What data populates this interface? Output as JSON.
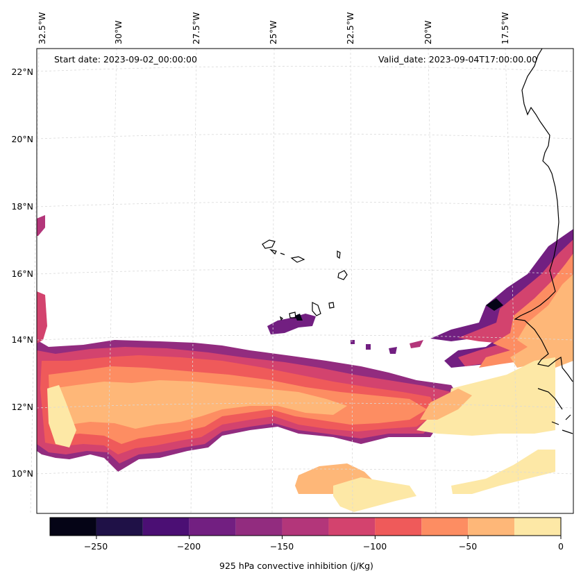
{
  "map": {
    "start_date": "Start date: 2023-09-02_00:00:00",
    "valid_date": "Valid_date: 2023-09-04T17:00:00.00",
    "lon_labels": [
      "32.5°W",
      "30°W",
      "27.5°W",
      "25°W",
      "22.5°W",
      "20°W",
      "17.5°W"
    ],
    "lat_labels": [
      "22°N",
      "20°N",
      "18°N",
      "16°N",
      "14°N",
      "12°N",
      "10°N"
    ]
  },
  "colorbar": {
    "label": "925 hPa convective inhibition (j/Kg)",
    "tick_labels": [
      "−250",
      "−200",
      "−150",
      "−100",
      "−50",
      "0"
    ],
    "levels": [
      -275,
      -250,
      -225,
      -200,
      -175,
      -150,
      -125,
      -100,
      -75,
      -50,
      -25,
      0
    ],
    "colors": [
      "#050416",
      "#1f1147",
      "#4b0f74",
      "#721f81",
      "#922c7f",
      "#b3367a",
      "#d3436e",
      "#ef5a5a",
      "#fd8d62",
      "#feb778",
      "#fde8a6"
    ]
  },
  "colors": {
    "coast": "#000000",
    "grid": "#d9d9d9",
    "frame": "#000000"
  }
}
